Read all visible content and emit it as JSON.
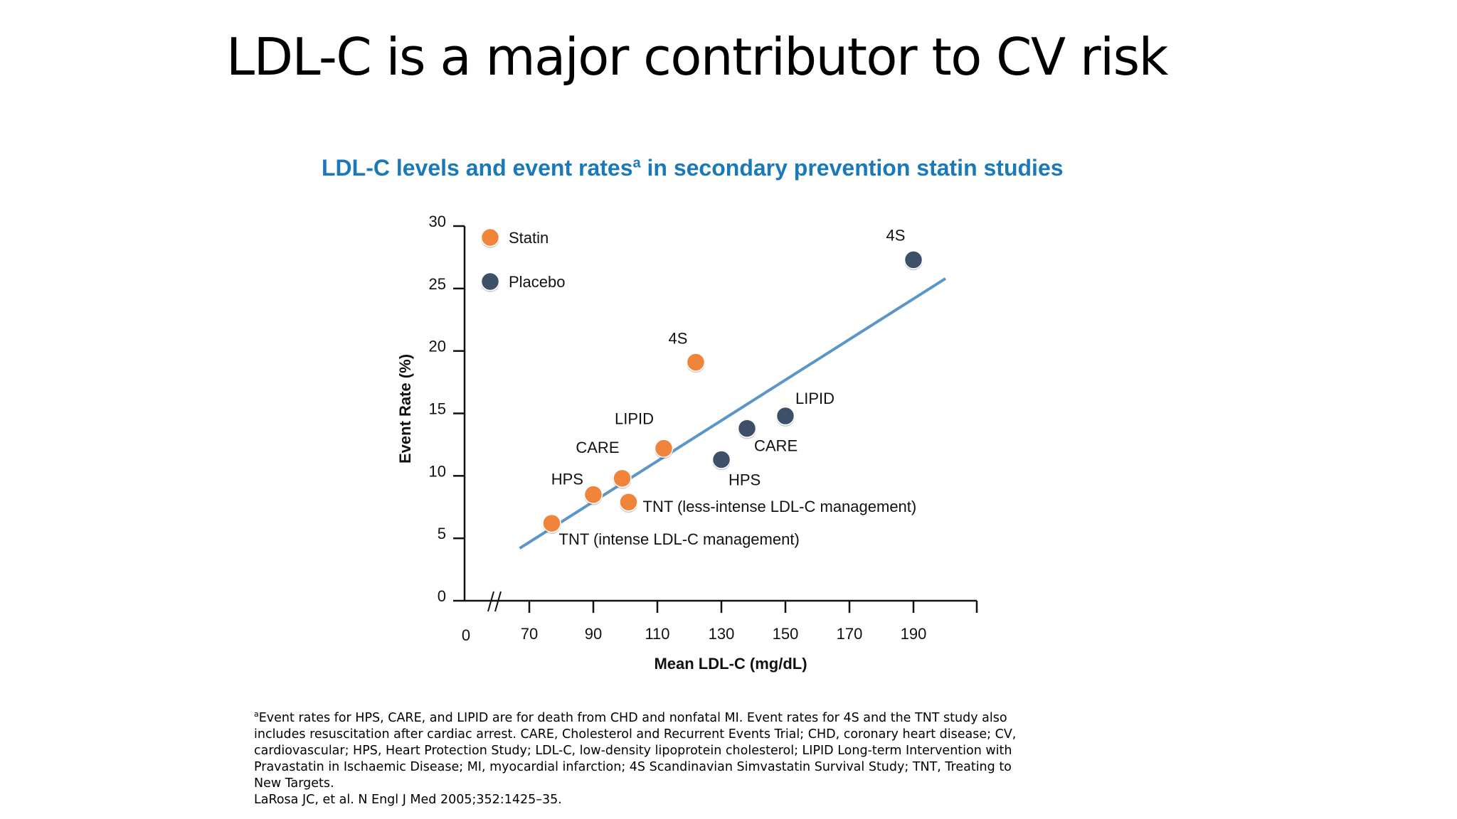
{
  "slide": {
    "title": "LDL-C is a major contributor to CV risk",
    "subtitle": "LDL-C levels and event rates",
    "subtitle_sup": "a",
    "subtitle_tail": " in secondary prevention statin studies"
  },
  "footnote": {
    "sup": "a",
    "text": "Event rates for HPS, CARE, and LIPID are for death from CHD and nonfatal MI. Event rates for 4S and the TNT study also includes resuscitation after cardiac arrest. CARE, Cholesterol and Recurrent Events Trial; CHD, coronary heart disease; CV, cardiovascular; HPS, Heart Protection Study; LDL-C, low-density lipoprotein cholesterol; LIPID Long-term Intervention with Pravastatin in Ischaemic Disease; MI, myocardial infarction; 4S Scandinavian Simvastatin Survival Study; TNT, Treating to New Targets.",
    "citation": "LaRosa JC, et al. N Engl J Med 2005;352:1425–35."
  },
  "chart_data": {
    "type": "scatter",
    "xlabel": "Mean LDL-C (mg/dL)",
    "ylabel": "Event Rate (%)",
    "xlim": [
      50,
      210
    ],
    "ylim": [
      0,
      30
    ],
    "x_axis_break": true,
    "x_ticks": [
      70,
      90,
      110,
      130,
      150,
      170,
      190
    ],
    "x_tick_labels": [
      "70",
      "90",
      "110",
      "130",
      "150",
      "170",
      "190"
    ],
    "x_origin_label": "0",
    "y_ticks": [
      0,
      5,
      10,
      15,
      20,
      25,
      30
    ],
    "y_tick_labels": [
      "0",
      "5",
      "10",
      "15",
      "20",
      "25",
      "30"
    ],
    "legend_position": "top-left",
    "colors": {
      "statin": "#f0843a",
      "placebo": "#3e4f69",
      "trend": "#5b96c7"
    },
    "series": [
      {
        "name": "Statin",
        "color": "#f0843a",
        "points": [
          {
            "label": "TNT (intense LDL-C management)",
            "x": 77,
            "y": 6.2
          },
          {
            "label": "HPS",
            "x": 90,
            "y": 8.5
          },
          {
            "label": "CARE",
            "x": 99,
            "y": 9.8
          },
          {
            "label": "TNT (less-intense LDL-C management)",
            "x": 101,
            "y": 7.9
          },
          {
            "label": "LIPID",
            "x": 112,
            "y": 12.2
          },
          {
            "label": "4S",
            "x": 122,
            "y": 19.1
          }
        ]
      },
      {
        "name": "Placebo",
        "color": "#3e4f69",
        "points": [
          {
            "label": "HPS",
            "x": 130,
            "y": 11.3
          },
          {
            "label": "CARE",
            "x": 138,
            "y": 13.8
          },
          {
            "label": "LIPID",
            "x": 150,
            "y": 14.8
          },
          {
            "label": "4S",
            "x": 190,
            "y": 27.3
          }
        ]
      }
    ],
    "trendline": {
      "x": [
        67,
        200
      ],
      "y": [
        4.2,
        25.8
      ]
    }
  }
}
